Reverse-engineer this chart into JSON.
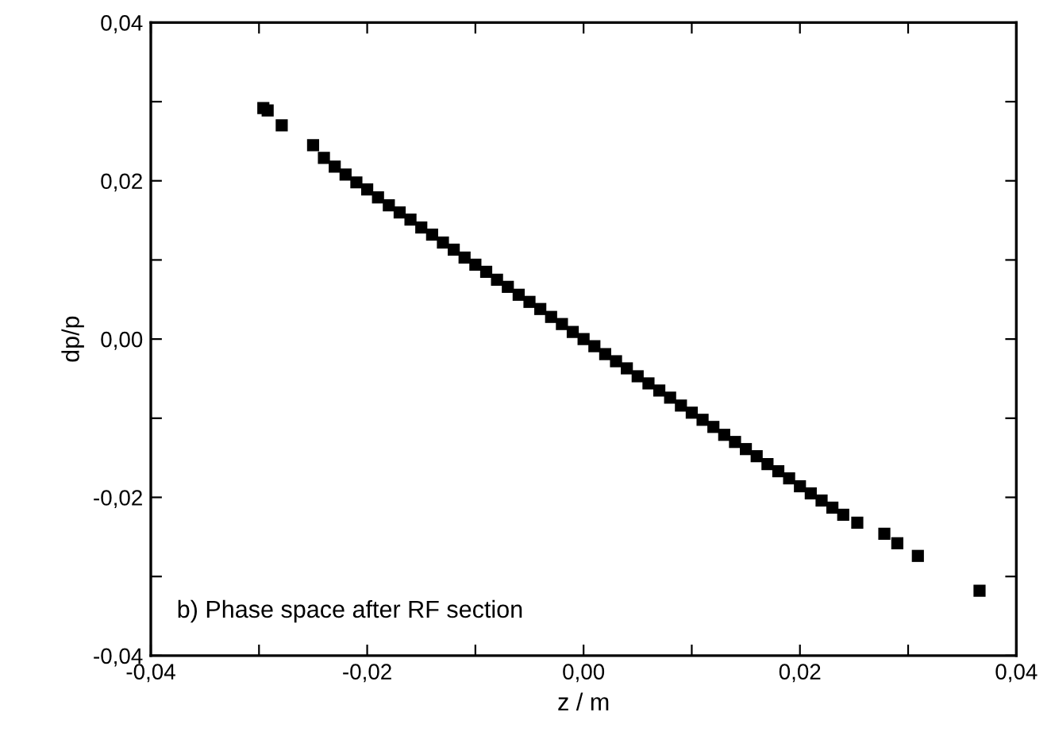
{
  "chart_data": {
    "type": "scatter",
    "xlabel": "z / m",
    "ylabel": "dp/p",
    "annotations": [
      "b) Phase space after RF section"
    ],
    "xlim": [
      -0.04,
      0.04
    ],
    "ylim": [
      -0.04,
      0.04
    ],
    "xticks": [
      {
        "value": -0.04,
        "label": "-0,04"
      },
      {
        "value": -0.03,
        "label": null
      },
      {
        "value": -0.02,
        "label": "-0,02"
      },
      {
        "value": -0.01,
        "label": null
      },
      {
        "value": 0,
        "label": "0,00"
      },
      {
        "value": 0.01,
        "label": null
      },
      {
        "value": 0.02,
        "label": "0,02"
      },
      {
        "value": 0.03,
        "label": null
      },
      {
        "value": 0.04,
        "label": "0,04"
      }
    ],
    "yticks": [
      {
        "value": -0.04,
        "label": "-0,04"
      },
      {
        "value": -0.03,
        "label": null
      },
      {
        "value": -0.02,
        "label": "-0,02"
      },
      {
        "value": -0.01,
        "label": null
      },
      {
        "value": 0,
        "label": "0,00"
      },
      {
        "value": 0.01,
        "label": null
      },
      {
        "value": 0.02,
        "label": "0,02"
      },
      {
        "value": 0.03,
        "label": null
      },
      {
        "value": 0.04,
        "label": "0,04"
      }
    ],
    "grid": false,
    "legend": false,
    "marker": "square",
    "series": [
      {
        "color": "#000000",
        "x": [
          -0.0296,
          -0.0292,
          -0.0279,
          -0.025,
          -0.024,
          -0.023,
          -0.022,
          -0.021,
          -0.02,
          -0.019,
          -0.018,
          -0.017,
          -0.016,
          -0.015,
          -0.014,
          -0.013,
          -0.012,
          -0.011,
          -0.01,
          -0.009,
          -0.008,
          -0.007,
          -0.006,
          -0.005,
          -0.004,
          -0.003,
          -0.002,
          -0.001,
          0,
          0.001,
          0.002,
          0.003,
          0.004,
          0.005,
          0.006,
          0.007,
          0.008,
          0.009,
          0.01,
          0.011,
          0.012,
          0.013,
          0.014,
          0.015,
          0.016,
          0.017,
          0.018,
          0.019,
          0.02,
          0.021,
          0.022,
          0.023,
          0.024,
          0.0253,
          0.0278,
          0.029,
          0.0309,
          0.0366
        ],
        "values": [
          0.0292,
          0.0289,
          0.027,
          0.0245,
          0.0229,
          0.0218,
          0.0208,
          0.0198,
          0.0189,
          0.0179,
          0.0169,
          0.016,
          0.0151,
          0.0141,
          0.0132,
          0.0122,
          0.0113,
          0.0103,
          0.0094,
          0.0085,
          0.0075,
          0.0066,
          0.0056,
          0.0047,
          0.0038,
          0.0028,
          0.0019,
          0.0009,
          0,
          -0.0009,
          -0.0019,
          -0.0028,
          -0.0037,
          -0.0047,
          -0.0056,
          -0.0065,
          -0.0074,
          -0.0084,
          -0.0093,
          -0.0102,
          -0.0111,
          -0.0121,
          -0.013,
          -0.0139,
          -0.0148,
          -0.0158,
          -0.0167,
          -0.0176,
          -0.0186,
          -0.0195,
          -0.0204,
          -0.0213,
          -0.0222,
          -0.0232,
          -0.0246,
          -0.0258,
          -0.0274,
          -0.0318
        ]
      }
    ]
  }
}
